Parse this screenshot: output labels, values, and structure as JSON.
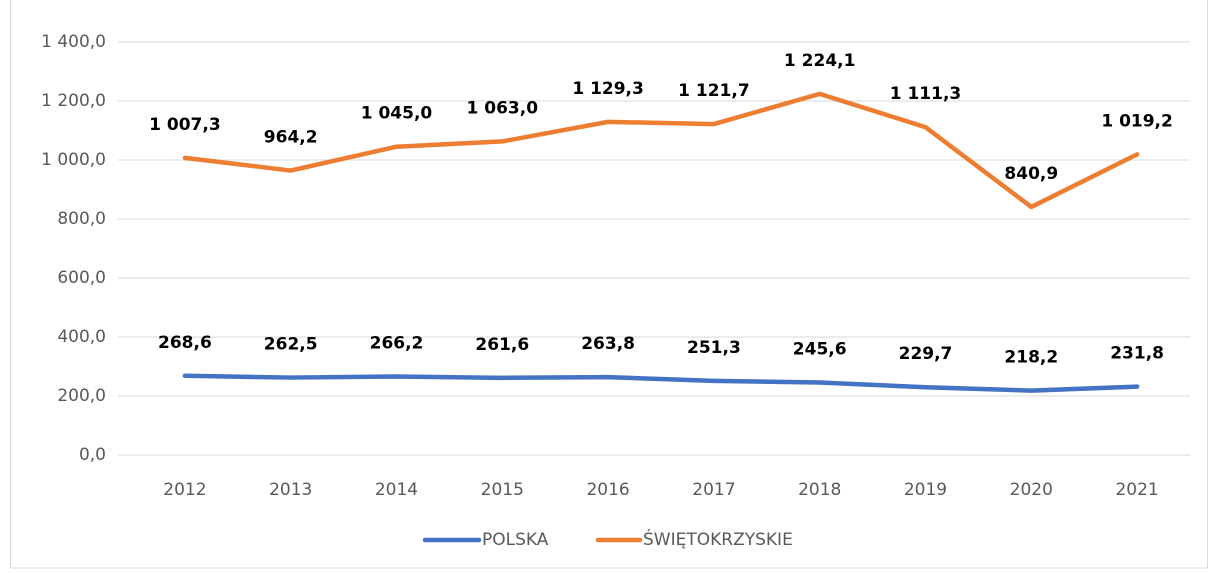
{
  "chart_data": {
    "type": "line",
    "categories": [
      "2012",
      "2013",
      "2014",
      "2015",
      "2016",
      "2017",
      "2018",
      "2019",
      "2020",
      "2021"
    ],
    "series": [
      {
        "name": "POLSKA",
        "color": "#4472c4",
        "values": [
          268.6,
          262.5,
          266.2,
          261.6,
          263.8,
          251.3,
          245.6,
          229.7,
          218.2,
          231.8
        ],
        "value_labels": [
          "268,6",
          "262,5",
          "266,2",
          "261,6",
          "263,8",
          "251,3",
          "245,6",
          "229,7",
          "218,2",
          "231,8"
        ]
      },
      {
        "name": "ŚWIĘTOKRZYSKIE",
        "color": "#ed7d31",
        "values": [
          1007.3,
          964.2,
          1045.0,
          1063.0,
          1129.3,
          1121.7,
          1224.1,
          1111.3,
          840.9,
          1019.2
        ],
        "value_labels": [
          "1 007,3",
          "964,2",
          "1 045,0",
          "1 063,0",
          "1 129,3",
          "1 121,7",
          "1 224,1",
          "1 111,3",
          "840,9",
          "1 019,2"
        ]
      }
    ],
    "ylim": [
      0,
      1400
    ],
    "yticks": [
      {
        "value": 0,
        "label": "0,0"
      },
      {
        "value": 200,
        "label": "200,0"
      },
      {
        "value": 400,
        "label": "400,0"
      },
      {
        "value": 600,
        "label": "600,0"
      },
      {
        "value": 800,
        "label": "800,0"
      },
      {
        "value": 1000,
        "label": "1 000,0"
      },
      {
        "value": 1200,
        "label": "1 200,0"
      },
      {
        "value": 1400,
        "label": "1 400,0"
      }
    ],
    "grid": true,
    "legend": "bottom"
  }
}
